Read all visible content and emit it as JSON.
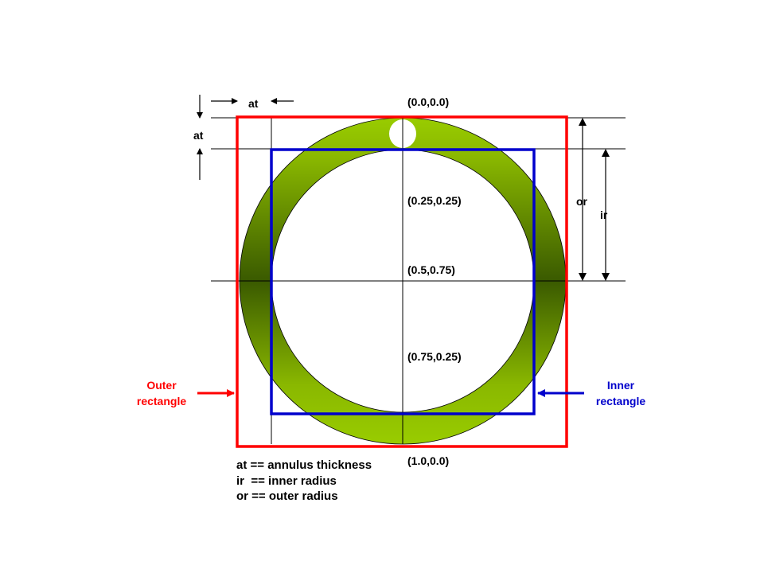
{
  "diagram": {
    "coords": {
      "top": "(0.0,0.0)",
      "inner_top": "(0.25,0.25)",
      "center": "(0.5,0.75)",
      "lower": "(0.75,0.25)",
      "bottom": "(1.0,0.0)"
    },
    "dimension_labels": {
      "at_horizontal": "at",
      "at_vertical": "at",
      "outer_radius": "or",
      "inner_radius": "ir"
    },
    "outer_rectangle": {
      "line1": "Outer",
      "line2": "rectangle",
      "color": "#ff0000"
    },
    "inner_rectangle": {
      "line1": "Inner",
      "line2": "rectangle",
      "color": "#0000cc"
    },
    "legend": [
      "at == annulus thickness",
      "ir  == inner radius",
      "or == outer radius"
    ],
    "annulus_colors": {
      "light": "#99cc00",
      "dark": "#3a5a00"
    }
  }
}
